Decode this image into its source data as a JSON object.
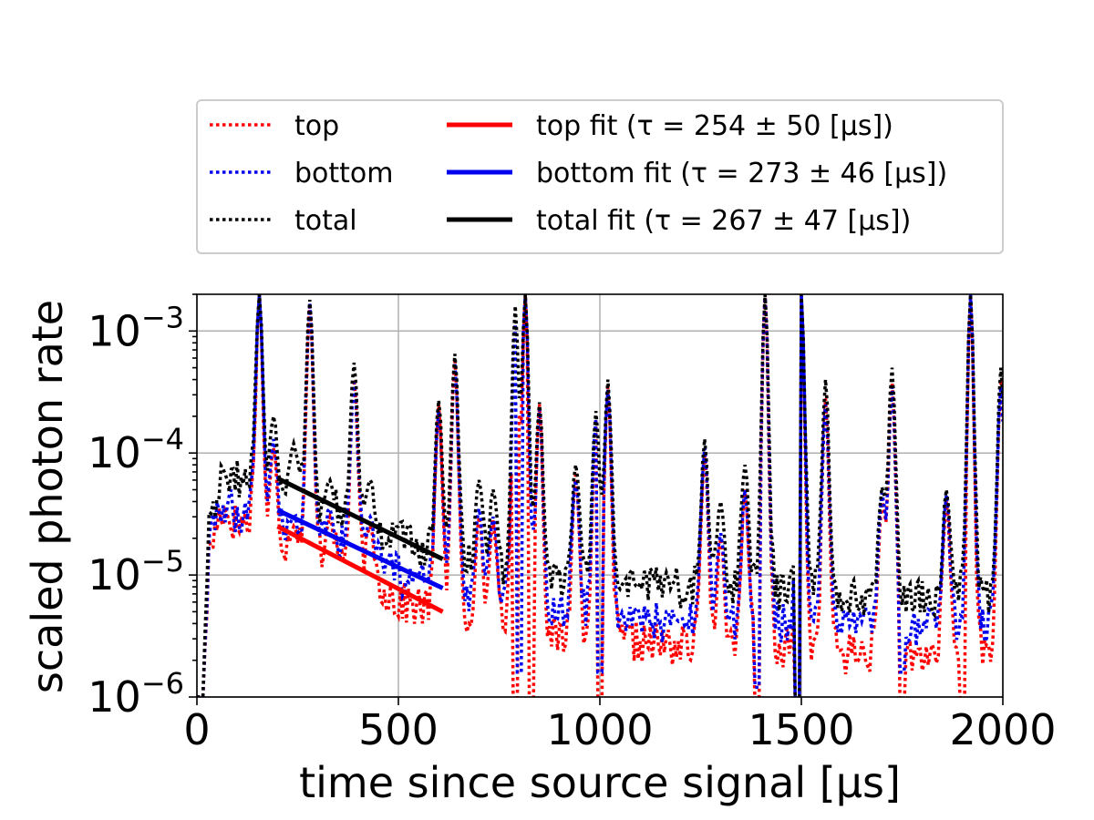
{
  "chart_data": {
    "type": "line",
    "xlabel": "time since source signal [μs]",
    "ylabel": "scaled photon rate",
    "xlim": [
      0,
      2000
    ],
    "ylim": [
      1e-06,
      0.002
    ],
    "yscale": "log",
    "grid": true,
    "legend_position": "above plot, two columns",
    "x_ticks": [
      "0",
      "500",
      "1000",
      "1500",
      "2000"
    ],
    "y_ticks": [
      {
        "base": "10",
        "exp": "−6"
      },
      {
        "base": "10",
        "exp": "−5"
      },
      {
        "base": "10",
        "exp": "−4"
      },
      {
        "base": "10",
        "exp": "−3"
      }
    ],
    "series": [
      {
        "name": "top",
        "style": "dotted",
        "color": "#ff0000",
        "baseline": [
          [
            0,
            1e-06
          ],
          [
            15,
            1e-06
          ],
          [
            30,
            1.5e-05
          ],
          [
            60,
            3.5e-05
          ],
          [
            100,
            2.6e-05
          ],
          [
            140,
            2.8e-05
          ],
          [
            160,
            1.3e-05
          ],
          [
            200,
            1.8e-05
          ],
          [
            300,
            1.5e-05
          ],
          [
            400,
            1.2e-05
          ],
          [
            500,
            6e-06
          ],
          [
            600,
            5e-06
          ],
          [
            700,
            4e-06
          ],
          [
            800,
            3e-06
          ],
          [
            1000,
            3e-06
          ],
          [
            1200,
            2.6e-06
          ],
          [
            1400,
            2.5e-06
          ],
          [
            1600,
            2.3e-06
          ],
          [
            1800,
            2.2e-06
          ],
          [
            2000,
            2.2e-06
          ]
        ],
        "peaks": [
          [
            155,
            0.002
          ],
          [
            190,
            0.00011
          ],
          [
            240,
            2.5e-05
          ],
          [
            280,
            0.0016
          ],
          [
            330,
            3e-05
          ],
          [
            390,
            0.0004
          ],
          [
            430,
            2.5e-05
          ],
          [
            600,
            0.00025
          ],
          [
            640,
            0.0006
          ],
          [
            700,
            3e-05
          ],
          [
            735,
            2.8e-05
          ],
          [
            790,
            0.0013
          ],
          [
            815,
            0.002
          ],
          [
            850,
            0.00025
          ],
          [
            940,
            7e-05
          ],
          [
            990,
            0.0002
          ],
          [
            1020,
            0.00035
          ],
          [
            1260,
            0.0001
          ],
          [
            1300,
            2e-05
          ],
          [
            1360,
            5e-05
          ],
          [
            1410,
            0.002
          ],
          [
            1500,
            0.002
          ],
          [
            1560,
            0.00028
          ],
          [
            1700,
            4e-05
          ],
          [
            1725,
            0.0004
          ],
          [
            1860,
            4e-05
          ],
          [
            1920,
            0.002
          ],
          [
            1995,
            0.0004
          ]
        ],
        "dips": [
          [
            790,
            1e-06
          ],
          [
            830,
            1e-06
          ],
          [
            1000,
            1e-06
          ],
          [
            1390,
            1e-06
          ],
          [
            1490,
            1e-06
          ],
          [
            1750,
            1e-06
          ],
          [
            1900,
            1e-06
          ]
        ]
      },
      {
        "name": "bottom",
        "style": "dotted",
        "color": "#0000ee",
        "baseline": [
          [
            0,
            1e-06
          ],
          [
            15,
            1e-06
          ],
          [
            30,
            1.8e-05
          ],
          [
            60,
            3.8e-05
          ],
          [
            100,
            3.2e-05
          ],
          [
            140,
            3.3e-05
          ],
          [
            160,
            2e-05
          ],
          [
            200,
            2.3e-05
          ],
          [
            300,
            2e-05
          ],
          [
            400,
            1.6e-05
          ],
          [
            500,
            1e-05
          ],
          [
            600,
            8e-06
          ],
          [
            700,
            6e-06
          ],
          [
            800,
            5e-06
          ],
          [
            1000,
            4.5e-06
          ],
          [
            1200,
            4e-06
          ],
          [
            1400,
            4e-06
          ],
          [
            1600,
            3.8e-06
          ],
          [
            1800,
            3.5e-06
          ],
          [
            2000,
            3.5e-06
          ]
        ],
        "peaks": [
          [
            155,
            0.002
          ],
          [
            190,
            0.00013
          ],
          [
            240,
            3e-05
          ],
          [
            280,
            0.0017
          ],
          [
            330,
            3.5e-05
          ],
          [
            390,
            0.00038
          ],
          [
            430,
            3e-05
          ],
          [
            600,
            0.00022
          ],
          [
            640,
            0.00055
          ],
          [
            700,
            3.5e-05
          ],
          [
            735,
            3e-05
          ],
          [
            790,
            0.0012
          ],
          [
            815,
            0.002
          ],
          [
            850,
            0.00023
          ],
          [
            940,
            6e-05
          ],
          [
            990,
            0.00019
          ],
          [
            1020,
            0.00033
          ],
          [
            1260,
            0.00011
          ],
          [
            1300,
            2.2e-05
          ],
          [
            1360,
            5e-05
          ],
          [
            1410,
            0.002
          ],
          [
            1500,
            0.002
          ],
          [
            1560,
            0.00025
          ],
          [
            1700,
            4.5e-05
          ],
          [
            1725,
            0.00035
          ],
          [
            1860,
            4.5e-05
          ],
          [
            1920,
            0.002
          ],
          [
            1995,
            0.00035
          ]
        ],
        "dips": [
          [
            800,
            2e-06
          ],
          [
            1000,
            2e-06
          ],
          [
            1390,
            1.5e-06
          ],
          [
            1490,
            1e-06
          ],
          [
            1750,
            2e-06
          ]
        ]
      },
      {
        "name": "total",
        "style": "dotted",
        "color": "#000000",
        "baseline": [
          [
            0,
            1e-06
          ],
          [
            15,
            1e-06
          ],
          [
            30,
            3.5e-05
          ],
          [
            60,
            5.5e-05
          ],
          [
            100,
            6.5e-05
          ],
          [
            140,
            5.5e-05
          ],
          [
            160,
            4e-05
          ],
          [
            200,
            4.5e-05
          ],
          [
            300,
            3.5e-05
          ],
          [
            400,
            3e-05
          ],
          [
            500,
            2e-05
          ],
          [
            600,
            1.4e-05
          ],
          [
            700,
            1.2e-05
          ],
          [
            800,
            1e-05
          ],
          [
            1000,
            9e-06
          ],
          [
            1200,
            8e-06
          ],
          [
            1400,
            7.5e-06
          ],
          [
            1600,
            7e-06
          ],
          [
            1800,
            6.5e-06
          ],
          [
            2000,
            6.5e-06
          ]
        ],
        "peaks": [
          [
            155,
            0.002
          ],
          [
            190,
            0.0002
          ],
          [
            240,
            0.00012
          ],
          [
            280,
            0.0018
          ],
          [
            330,
            6e-05
          ],
          [
            390,
            0.00055
          ],
          [
            430,
            6e-05
          ],
          [
            600,
            0.00027
          ],
          [
            640,
            0.00065
          ],
          [
            700,
            6e-05
          ],
          [
            735,
            5e-05
          ],
          [
            790,
            0.0016
          ],
          [
            815,
            0.002
          ],
          [
            850,
            0.00026
          ],
          [
            940,
            8e-05
          ],
          [
            990,
            0.00022
          ],
          [
            1020,
            0.0004
          ],
          [
            1260,
            0.00013
          ],
          [
            1300,
            4e-05
          ],
          [
            1360,
            8e-05
          ],
          [
            1410,
            0.002
          ],
          [
            1500,
            0.002
          ],
          [
            1560,
            0.0004
          ],
          [
            1700,
            5e-05
          ],
          [
            1725,
            0.0005
          ],
          [
            1860,
            5e-05
          ],
          [
            1920,
            0.002
          ],
          [
            1995,
            0.0005
          ]
        ],
        "dips": [
          [
            1490,
            1e-06
          ]
        ]
      },
      {
        "name": "top fit (τ = 254 ± 50 [μs])",
        "style": "solid",
        "color": "#ff0000",
        "x": [
          200,
          610
        ],
        "y": [
          2.5e-05,
          5e-06
        ]
      },
      {
        "name": "bottom fit (τ = 273 ± 46 [μs])",
        "style": "solid",
        "color": "#0000ee",
        "x": [
          200,
          610
        ],
        "y": [
          3.4e-05,
          7.8e-06
        ]
      },
      {
        "name": "total fit (τ = 267 ± 47 [μs])",
        "style": "solid",
        "color": "#000000",
        "x": [
          200,
          610
        ],
        "y": [
          6.2e-05,
          1.35e-05
        ]
      }
    ]
  }
}
